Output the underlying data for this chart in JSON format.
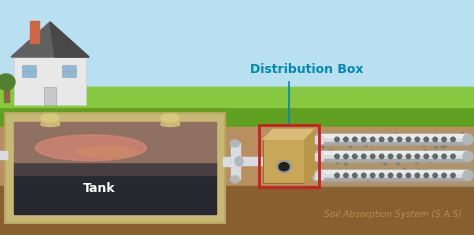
{
  "title": "Distribution Box",
  "subtitle": "Soil Absorption System (S.A.S)",
  "tank_label": "Tank",
  "bg_sky": "#b8e0f0",
  "bg_grass_top": "#88c840",
  "bg_grass_bot": "#60a020",
  "bg_soil_top": "#b89060",
  "bg_soil_mid": "#a07848",
  "bg_soil_dark": "#886030",
  "tank_wall_outer": "#c8b878",
  "tank_wall_inner": "#b8a860",
  "tank_dark": "#282830",
  "tank_mid": "#484040",
  "tank_top_layer": "#907060",
  "tank_fluid_pink": "#e08878",
  "tank_fluid_orange": "#d09060",
  "pipe_light": "#d8dce0",
  "pipe_mid": "#b0b8bc",
  "pipe_dark": "#909898",
  "pipe_hole": "#606868",
  "dist_box_face": "#c8a858",
  "dist_box_top": "#d8bc78",
  "dist_box_right": "#b89848",
  "dist_box_shadow": "#907030",
  "dist_box_outline": "#cc2020",
  "annotation_color": "#0088bb",
  "label_color": "#ffffff",
  "sas_label_color": "#b09050",
  "house_wall": "#e8e8e8",
  "house_wall_shadow": "#d0d0d0",
  "house_roof": "#606060",
  "house_roof_dark": "#484848",
  "house_door": "#c8c8c8",
  "house_window": "#88bbdd",
  "house_chimney": "#cc6644",
  "tree_green": "#508030",
  "tree_trunk": "#886644",
  "vent_body": "#c8b870",
  "vent_cap": "#d8c880",
  "gravel_color": "#a89878",
  "inlet_pipe_gray": "#c8ccd0"
}
